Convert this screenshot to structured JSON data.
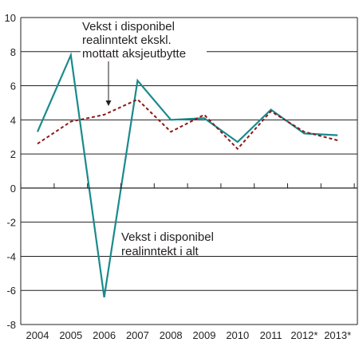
{
  "chart_data": {
    "type": "line",
    "categories": [
      "2004",
      "2005",
      "2006",
      "2007",
      "2008",
      "2009",
      "2010",
      "2011",
      "2012*",
      "2013*"
    ],
    "ylim": [
      -8,
      10
    ],
    "yticks": [
      -8,
      -6,
      -4,
      -2,
      0,
      2,
      4,
      6,
      8,
      10
    ],
    "ytick_labels": [
      "-8",
      "-6",
      "-4",
      "-2",
      "0",
      "2",
      "4",
      "6",
      "8",
      "10"
    ],
    "grid": "horizontal",
    "series": [
      {
        "name": "Vekst i disponibel realinntekt i alt",
        "values": [
          3.3,
          7.8,
          -6.4,
          6.3,
          4.0,
          4.1,
          2.7,
          4.6,
          3.2,
          3.1
        ],
        "color": "#1a8a8c",
        "style": "solid"
      },
      {
        "name": "Vekst i disponibel realinntekt ekskl. mottatt aksjeutbytte",
        "values": [
          2.6,
          3.9,
          4.3,
          5.2,
          3.3,
          4.3,
          2.3,
          4.5,
          3.3,
          2.8
        ],
        "color": "#8b1a1a",
        "style": "dashed"
      }
    ],
    "annotations": [
      {
        "target_series": 1,
        "lines": [
          "Vekst i disponibel",
          "realinntekt ekskl.",
          "mottatt aksjeutbytte"
        ],
        "arrow": true
      },
      {
        "target_series": 0,
        "lines": [
          "Vekst i disponibel",
          "realinntekt i alt"
        ],
        "arrow": false
      }
    ],
    "title": "",
    "xlabel": "",
    "ylabel": ""
  }
}
